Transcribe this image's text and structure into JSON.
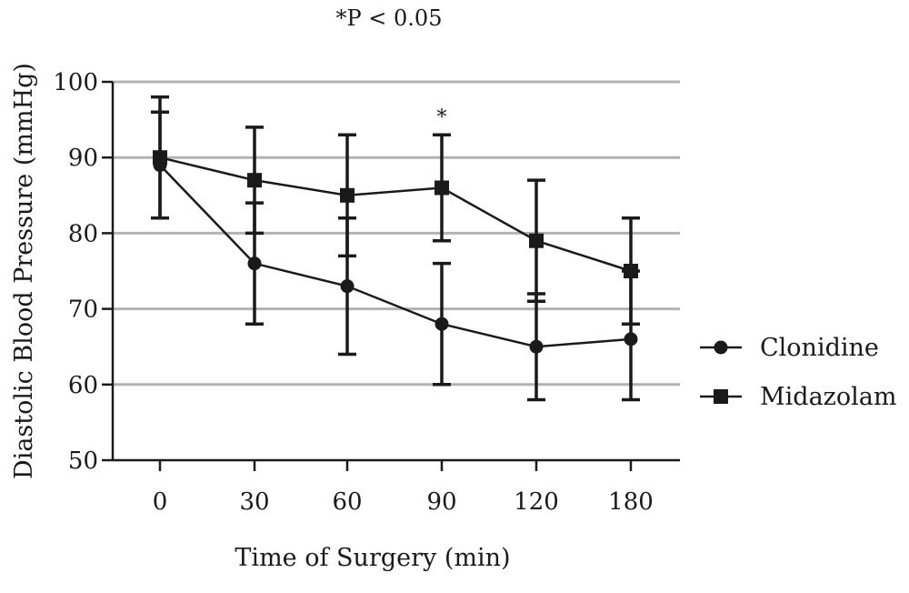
{
  "chart_data": {
    "type": "line",
    "title": "*P < 0.05",
    "xlabel": "Time of Surgery (min)",
    "ylabel": "Diastolic Blood Pressure (mmHg)",
    "categories": [
      "0",
      "30",
      "60",
      "90",
      "120",
      "180"
    ],
    "ylim": [
      50,
      100
    ],
    "yticks": [
      50,
      60,
      70,
      80,
      90,
      100
    ],
    "grid": true,
    "legend_position": "right",
    "series": [
      {
        "name": "Clonidine",
        "marker": "circle",
        "values": [
          89,
          76,
          73,
          68,
          65,
          66
        ],
        "error_upper": [
          96,
          84,
          82,
          76,
          72,
          75
        ],
        "error_lower": [
          82,
          68,
          64,
          60,
          58,
          58
        ]
      },
      {
        "name": "Midazolam",
        "marker": "square",
        "values": [
          90,
          87,
          85,
          86,
          79,
          75
        ],
        "error_upper": [
          98,
          94,
          93,
          93,
          87,
          82
        ],
        "error_lower": [
          82,
          80,
          77,
          79,
          71,
          68
        ]
      }
    ],
    "annotations": [
      {
        "text": "*",
        "category": "90"
      }
    ]
  }
}
